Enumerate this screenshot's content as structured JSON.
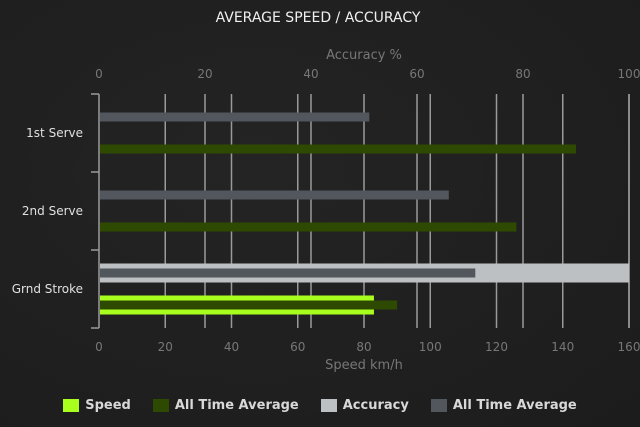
{
  "chart_data": {
    "type": "bar",
    "orientation": "horizontal",
    "title": "AVERAGE SPEED / ACCURACY",
    "categories": [
      "1st Serve",
      "2nd Serve",
      "Grnd Stroke"
    ],
    "top_axis": {
      "label": "Accuracy %",
      "range": [
        0,
        100
      ],
      "ticks": [
        0,
        20,
        40,
        60,
        80,
        100
      ]
    },
    "bottom_axis": {
      "label": "Speed km/h",
      "range": [
        0,
        160
      ],
      "ticks": [
        0,
        20,
        40,
        60,
        80,
        100,
        120,
        140,
        160
      ]
    },
    "grid": true,
    "legend_position": "bottom",
    "series": [
      {
        "name": "Speed",
        "axis": "speed",
        "color": "#a8ff1e",
        "values": [
          null,
          null,
          83
        ]
      },
      {
        "name": "All Time Average",
        "axis": "speed",
        "color": "#2e4a00",
        "values": [
          144,
          126,
          90
        ]
      },
      {
        "name": "Accuracy",
        "axis": "accuracy",
        "color": "#bcc0c3",
        "values": [
          null,
          null,
          100
        ]
      },
      {
        "name": "All Time Average",
        "axis": "accuracy",
        "color": "#52565d",
        "values": [
          51,
          66,
          71
        ]
      }
    ]
  }
}
